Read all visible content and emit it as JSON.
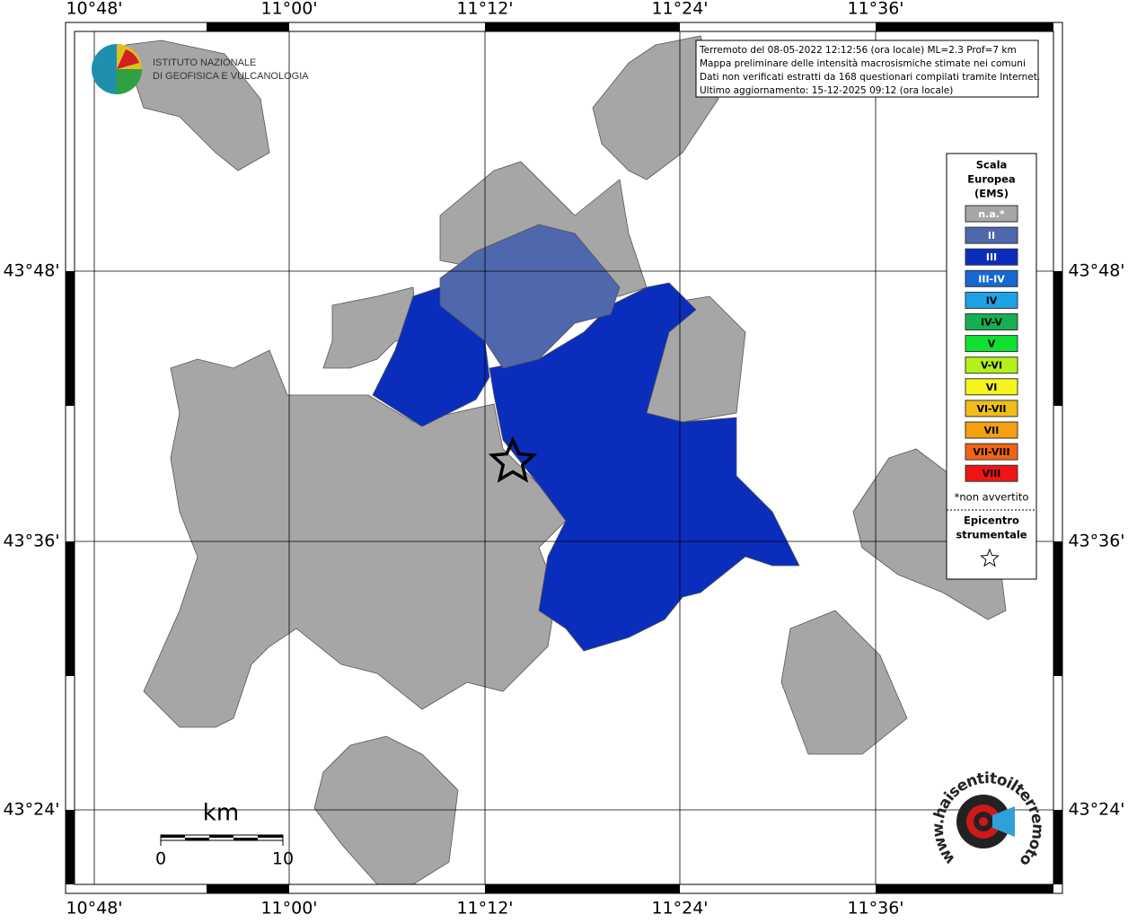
{
  "map": {
    "lon_labels": [
      "10°48'",
      "11°00'",
      "11°12'",
      "11°24'",
      "11°36'"
    ],
    "lat_labels": [
      "43°48'",
      "43°36'",
      "43°24'"
    ]
  },
  "logo": {
    "lines": [
      "ISTITUTO NAZIONALE",
      "DI GEOFISICA E VULCANOLOGIA"
    ]
  },
  "info": {
    "lines": [
      "Terremoto del 08-05-2022 12:12:56 (ora locale) ML=2.3 Prof=7 km",
      "Mappa preliminare delle intensità macrosismiche stimate nei comuni",
      "Dati non verificati estratti da 168 questionari compilati tramite Internet.",
      "Ultimo aggiornamento: 15-12-2025 09:12 (ora locale)"
    ]
  },
  "legend": {
    "title": [
      "Scala",
      "Europea",
      "(EMS)"
    ],
    "items": [
      {
        "label": "n.a.*",
        "color": "#a6a6a6"
      },
      {
        "label": "II",
        "color": "#4f67ad"
      },
      {
        "label": "III",
        "color": "#0b2dbc"
      },
      {
        "label": "III-IV",
        "color": "#1468d2"
      },
      {
        "label": "IV",
        "color": "#1ea2e6"
      },
      {
        "label": "IV-V",
        "color": "#16b050"
      },
      {
        "label": "V",
        "color": "#10e030"
      },
      {
        "label": "V-VI",
        "color": "#b4f01c"
      },
      {
        "label": "VI",
        "color": "#f5f51c"
      },
      {
        "label": "VI-VII",
        "color": "#f0be1a"
      },
      {
        "label": "VII",
        "color": "#f5a010"
      },
      {
        "label": "VII-VIII",
        "color": "#f06414"
      },
      {
        "label": "VIII",
        "color": "#f01414"
      }
    ],
    "note": "*non avvertito",
    "epicenter": [
      "Epicentro",
      "strumentale"
    ]
  },
  "scale": {
    "unit": "km",
    "labels": [
      "0",
      "10"
    ]
  },
  "site": "www.haisentitoilterremoto.it"
}
